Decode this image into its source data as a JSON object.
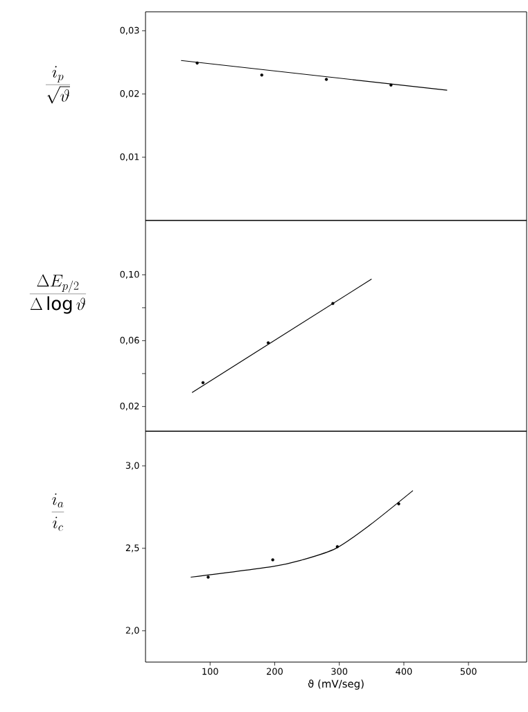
{
  "chart_data": [
    {
      "type": "scatter",
      "ylabel": "\\frac{i_p}{\\sqrt{\\vartheta}}",
      "xlim": [
        0,
        590
      ],
      "ylim": [
        0,
        0.033
      ],
      "yticks": [
        {
          "value": 0.01,
          "label": "0,01"
        },
        {
          "value": 0.02,
          "label": "0,02"
        },
        {
          "value": 0.03,
          "label": "0,03"
        }
      ],
      "tick_labels": "y",
      "grid": false,
      "series": [
        {
          "marker": "circle",
          "color": "#000000",
          "x": [
            80,
            180,
            280,
            380
          ],
          "values": [
            0.0249,
            0.023,
            0.0223,
            0.0214
          ]
        },
        {
          "type": "line",
          "marker": "none",
          "line_style": "solid",
          "color": "#000000",
          "x": [
            55,
            467
          ],
          "values": [
            0.0253,
            0.0206
          ]
        }
      ]
    },
    {
      "type": "scatter",
      "ylabel": "\\frac{\\Delta E_{p/2}}{\\Delta\\log\\vartheta}",
      "xlim": [
        0,
        590
      ],
      "ylim": [
        0.005,
        0.133
      ],
      "yticks": [
        {
          "value": 0.02,
          "label": "0,02"
        },
        {
          "value": 0.04,
          "label": null
        },
        {
          "value": 0.06,
          "label": "0,06"
        },
        {
          "value": 0.08,
          "label": null
        },
        {
          "value": 0.1,
          "label": "0,10"
        }
      ],
      "tick_labels": "y",
      "grid": false,
      "series": [
        {
          "marker": "circle",
          "color": "#000000",
          "x": [
            89,
            190,
            290
          ],
          "values": [
            0.0345,
            0.0587,
            0.0826
          ]
        },
        {
          "type": "line",
          "marker": "none",
          "line_style": "solid",
          "color": "#000000",
          "x": [
            72,
            350
          ],
          "values": [
            0.0285,
            0.0974
          ]
        }
      ]
    },
    {
      "type": "scatter",
      "ylabel": "\\frac{i_a}{i_c}",
      "xlabel": "ϑ (mV/seg)",
      "xlim": [
        0,
        590
      ],
      "ylim": [
        1.81,
        3.21
      ],
      "xticks": [
        100,
        200,
        300,
        400,
        500
      ],
      "yticks": [
        {
          "value": 2.0,
          "label": "2,0"
        },
        {
          "value": 2.5,
          "label": "2,5"
        },
        {
          "value": 3.0,
          "label": "3,0"
        }
      ],
      "grid": false,
      "series": [
        {
          "marker": "circle",
          "color": "#000000",
          "x": [
            97,
            197,
            297,
            392
          ],
          "values": [
            2.325,
            2.43,
            2.51,
            2.77
          ]
        },
        {
          "type": "line",
          "marker": "none",
          "line_style": "solid",
          "color": "#000000",
          "x": [
            70,
            197,
            243,
            295,
            347,
            414
          ],
          "values": [
            2.325,
            2.39,
            2.43,
            2.5,
            2.64,
            2.85
          ]
        }
      ]
    }
  ]
}
